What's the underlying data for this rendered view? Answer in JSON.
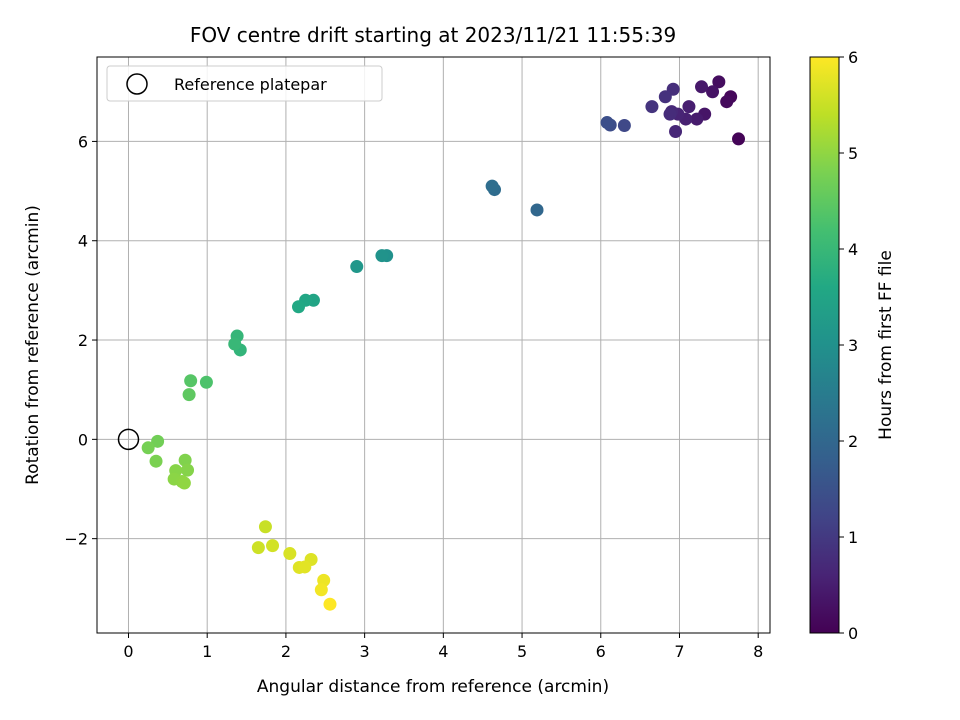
{
  "chart_data": {
    "type": "scatter",
    "title": "FOV centre drift starting at 2023/11/21 11:55:39",
    "xlabel": "Angular distance from reference (arcmin)",
    "ylabel": "Rotation from reference (arcmin)",
    "xlim": [
      -0.4,
      8.15
    ],
    "ylim": [
      -3.9,
      7.7
    ],
    "xticks": [
      0,
      1,
      2,
      3,
      4,
      5,
      6,
      7,
      8
    ],
    "yticks": [
      -2,
      0,
      2,
      4,
      6
    ],
    "grid": true,
    "legend": {
      "position": "top-left",
      "entries": [
        "Reference platepar"
      ]
    },
    "reference_point": {
      "x": 0,
      "y": 0
    },
    "colorbar": {
      "label": "Hours from first FF file",
      "range": [
        0,
        6
      ],
      "ticks": [
        0,
        1,
        2,
        3,
        4,
        5,
        6
      ],
      "colormap": "viridis"
    },
    "points": [
      {
        "x": 7.75,
        "y": 6.05,
        "h": 0.05
      },
      {
        "x": 7.65,
        "y": 6.9,
        "h": 0.1
      },
      {
        "x": 7.6,
        "y": 6.8,
        "h": 0.15
      },
      {
        "x": 7.5,
        "y": 7.2,
        "h": 0.2
      },
      {
        "x": 7.42,
        "y": 7.0,
        "h": 0.3
      },
      {
        "x": 7.32,
        "y": 6.55,
        "h": 0.35
      },
      {
        "x": 7.28,
        "y": 7.1,
        "h": 0.4
      },
      {
        "x": 7.22,
        "y": 6.45,
        "h": 0.45
      },
      {
        "x": 7.12,
        "y": 6.7,
        "h": 0.5
      },
      {
        "x": 7.08,
        "y": 6.45,
        "h": 0.55
      },
      {
        "x": 6.98,
        "y": 6.55,
        "h": 0.6
      },
      {
        "x": 6.95,
        "y": 6.2,
        "h": 0.65
      },
      {
        "x": 6.9,
        "y": 6.6,
        "h": 0.7
      },
      {
        "x": 6.88,
        "y": 6.55,
        "h": 0.75
      },
      {
        "x": 6.92,
        "y": 7.05,
        "h": 0.8
      },
      {
        "x": 6.82,
        "y": 6.9,
        "h": 0.85
      },
      {
        "x": 6.65,
        "y": 6.7,
        "h": 0.9
      },
      {
        "x": 6.3,
        "y": 6.32,
        "h": 1.3
      },
      {
        "x": 6.12,
        "y": 6.33,
        "h": 1.4
      },
      {
        "x": 6.08,
        "y": 6.38,
        "h": 1.45
      },
      {
        "x": 5.19,
        "y": 4.62,
        "h": 2.0
      },
      {
        "x": 4.65,
        "y": 5.03,
        "h": 2.1
      },
      {
        "x": 4.62,
        "y": 5.1,
        "h": 2.15
      },
      {
        "x": 3.28,
        "y": 3.7,
        "h": 3.0
      },
      {
        "x": 3.22,
        "y": 3.7,
        "h": 3.05
      },
      {
        "x": 2.9,
        "y": 3.48,
        "h": 3.15
      },
      {
        "x": 2.35,
        "y": 2.8,
        "h": 3.5
      },
      {
        "x": 2.25,
        "y": 2.8,
        "h": 3.55
      },
      {
        "x": 2.16,
        "y": 2.67,
        "h": 3.6
      },
      {
        "x": 1.42,
        "y": 1.8,
        "h": 3.9
      },
      {
        "x": 1.38,
        "y": 2.08,
        "h": 3.95
      },
      {
        "x": 1.35,
        "y": 1.92,
        "h": 4.0
      },
      {
        "x": 0.99,
        "y": 1.15,
        "h": 4.3
      },
      {
        "x": 0.79,
        "y": 1.18,
        "h": 4.4
      },
      {
        "x": 0.77,
        "y": 0.9,
        "h": 4.5
      },
      {
        "x": 0.37,
        "y": -0.04,
        "h": 4.7
      },
      {
        "x": 0.25,
        "y": -0.17,
        "h": 4.75
      },
      {
        "x": 0.35,
        "y": -0.44,
        "h": 4.8
      },
      {
        "x": 0.72,
        "y": -0.42,
        "h": 4.85
      },
      {
        "x": 0.75,
        "y": -0.62,
        "h": 4.9
      },
      {
        "x": 0.6,
        "y": -0.63,
        "h": 4.92
      },
      {
        "x": 0.58,
        "y": -0.8,
        "h": 4.95
      },
      {
        "x": 0.68,
        "y": -0.85,
        "h": 4.97
      },
      {
        "x": 0.71,
        "y": -0.88,
        "h": 5.0
      },
      {
        "x": 1.74,
        "y": -1.76,
        "h": 5.5
      },
      {
        "x": 1.65,
        "y": -2.18,
        "h": 5.55
      },
      {
        "x": 1.83,
        "y": -2.14,
        "h": 5.6
      },
      {
        "x": 2.05,
        "y": -2.3,
        "h": 5.65
      },
      {
        "x": 2.32,
        "y": -2.42,
        "h": 5.7
      },
      {
        "x": 2.17,
        "y": -2.58,
        "h": 5.72
      },
      {
        "x": 2.24,
        "y": -2.57,
        "h": 5.75
      },
      {
        "x": 2.48,
        "y": -2.84,
        "h": 5.85
      },
      {
        "x": 2.45,
        "y": -3.03,
        "h": 5.9
      },
      {
        "x": 2.56,
        "y": -3.32,
        "h": 6.0
      }
    ]
  }
}
